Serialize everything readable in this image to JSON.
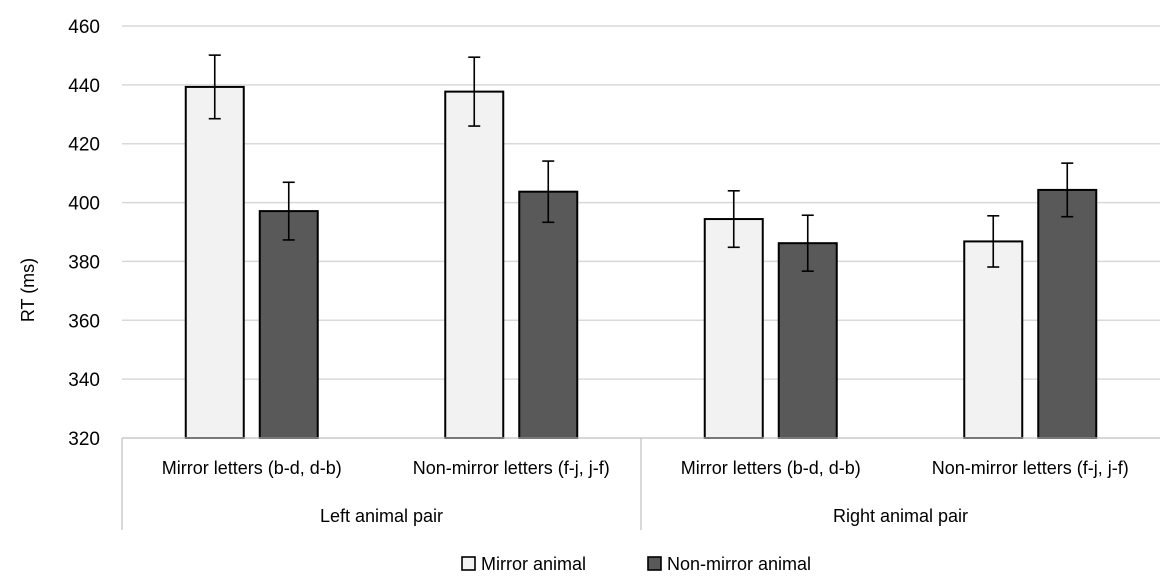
{
  "chart_data": {
    "type": "bar",
    "ylabel": "RT (ms)",
    "ylim": [
      320,
      460
    ],
    "yticks": [
      320,
      340,
      360,
      380,
      400,
      420,
      440,
      460
    ],
    "grid": true,
    "legend_position": "bottom",
    "groups": [
      {
        "label": "Left animal pair",
        "categories": [
          "Mirror letters (b-d, d-b)",
          "Non-mirror letters (f-j, j-f)"
        ]
      },
      {
        "label": "Right animal pair",
        "categories": [
          "Mirror letters (b-d, d-b)",
          "Non-mirror letters (f-j, j-f)"
        ]
      }
    ],
    "categories": [
      "Mirror letters (b-d, d-b)",
      "Non-mirror letters (f-j, j-f)",
      "Mirror letters (b-d, d-b)",
      "Non-mirror letters (f-j, j-f)"
    ],
    "series": [
      {
        "name": "Mirror animal",
        "color": "#f2f2f2",
        "values": [
          439.3,
          437.7,
          394.4,
          386.8
        ],
        "errors": [
          10.8,
          11.7,
          9.6,
          8.7
        ]
      },
      {
        "name": "Non-mirror animal",
        "color": "#595959",
        "values": [
          397.1,
          403.7,
          386.2,
          404.3
        ],
        "errors": [
          9.8,
          10.4,
          9.5,
          9.1
        ]
      }
    ]
  }
}
